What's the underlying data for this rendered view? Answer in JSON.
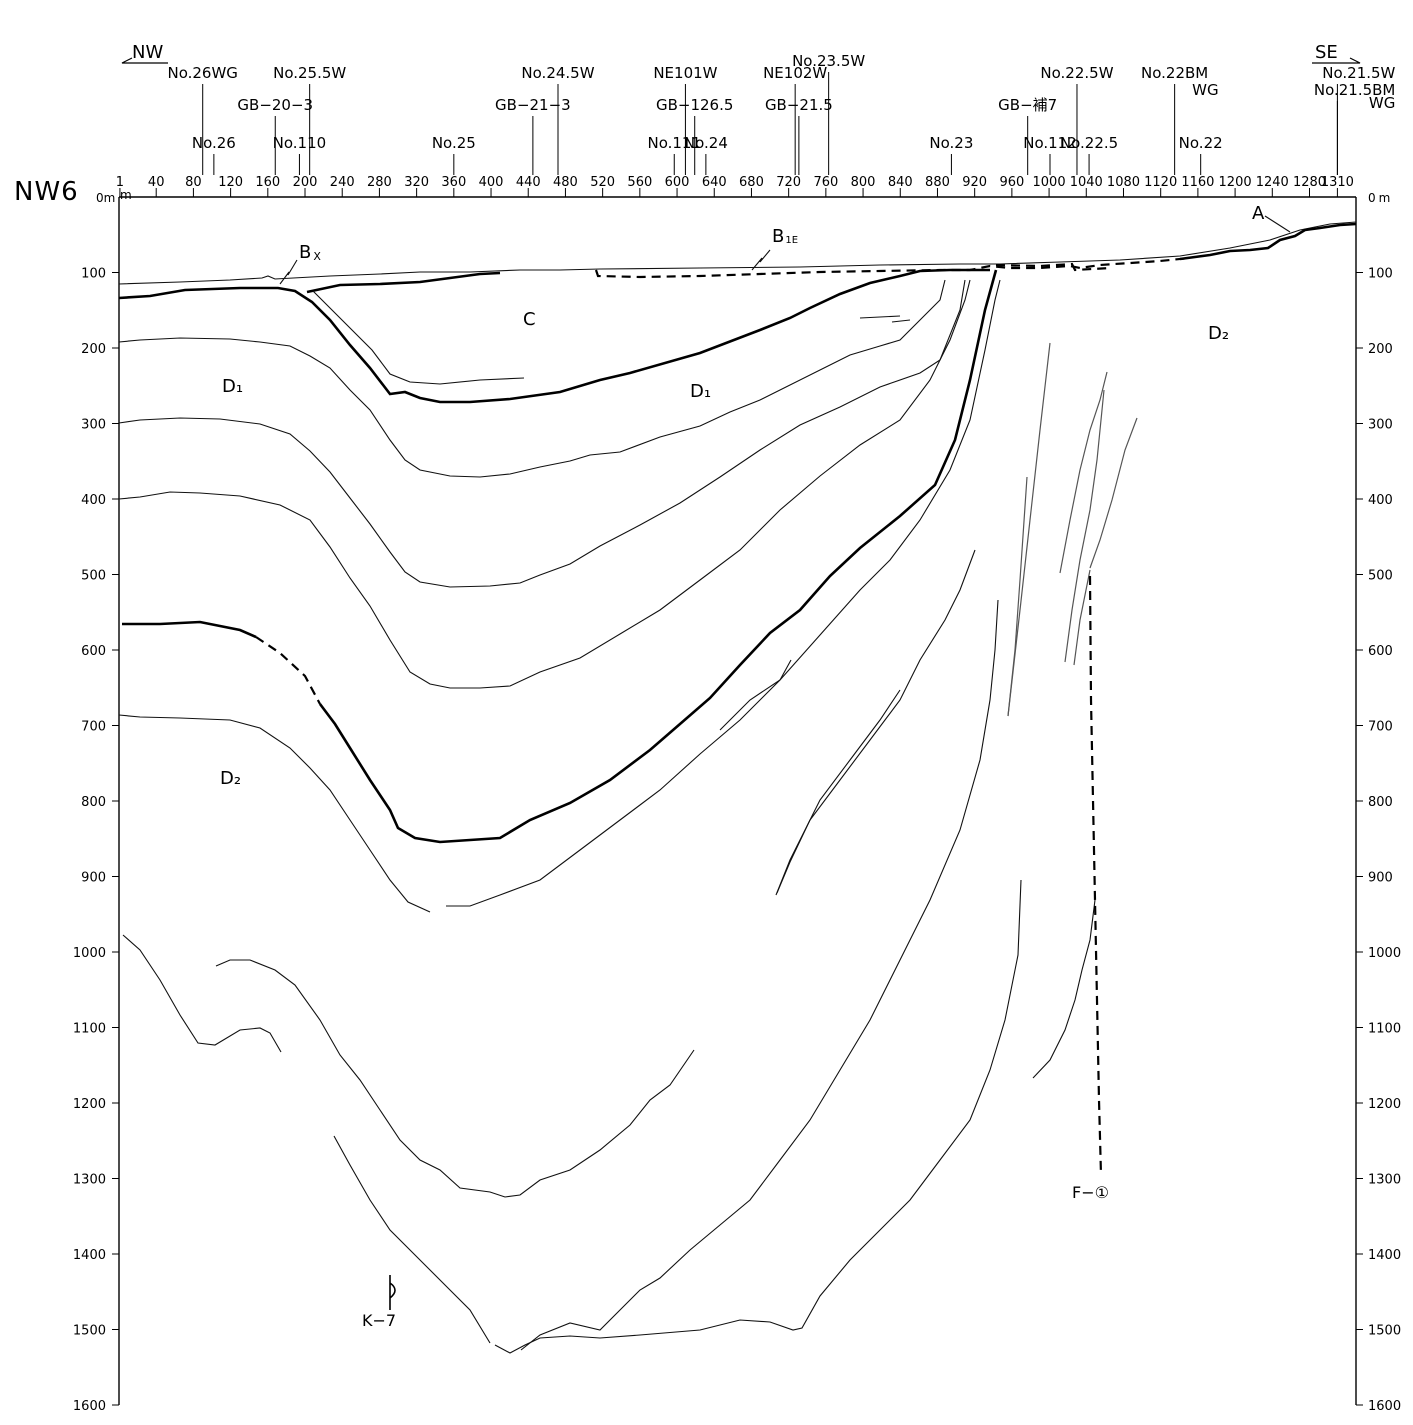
{
  "section": {
    "name": "NW6",
    "direction_left": "NW",
    "direction_right": "SE",
    "unit": "m"
  },
  "distance_axis": {
    "ticks": [
      "1",
      "40",
      "80",
      "120",
      "160",
      "200",
      "240",
      "280",
      "320",
      "360",
      "400",
      "440",
      "480",
      "520",
      "560",
      "600",
      "640",
      "680",
      "720",
      "760",
      "800",
      "840",
      "880",
      "920",
      "960",
      "1000",
      "1040",
      "1080",
      "1120",
      "1160",
      "1200",
      "1240",
      "1280",
      "1310"
    ]
  },
  "depth_axis": {
    "ticks": [
      "0",
      "100",
      "200",
      "300",
      "400",
      "500",
      "600",
      "700",
      "800",
      "900",
      "1000",
      "1100",
      "1200",
      "1300",
      "1400",
      "1500",
      "1600"
    ]
  },
  "boreholes": [
    {
      "label": "No.26WG",
      "x_m": 90
    },
    {
      "label": "No.26",
      "x_m": 102
    },
    {
      "label": "GB−20−3",
      "x_m": 168
    },
    {
      "label": "No.110",
      "x_m": 194
    },
    {
      "label": "No.25.5W",
      "x_m": 205
    },
    {
      "label": "No.25",
      "x_m": 360
    },
    {
      "label": "GB−21−3",
      "x_m": 445
    },
    {
      "label": "No.24.5W",
      "x_m": 472
    },
    {
      "label": "No.111",
      "x_m": 597
    },
    {
      "label": "NE101W",
      "x_m": 609
    },
    {
      "label": "GB−126.5",
      "x_m": 619
    },
    {
      "label": "No.24",
      "x_m": 631
    },
    {
      "label": "NE102W",
      "x_m": 727
    },
    {
      "label": "GB−21.5",
      "x_m": 731
    },
    {
      "label": "No.23.5W",
      "x_m": 763
    },
    {
      "label": "No.23",
      "x_m": 895
    },
    {
      "label": "GB−補7",
      "x_m": 977
    },
    {
      "label": "No.112",
      "x_m": 1001
    },
    {
      "label": "No.22.5W",
      "x_m": 1030
    },
    {
      "label": "No.22.5",
      "x_m": 1043
    },
    {
      "label": "No.22BM",
      "x_m": 1135
    },
    {
      "label": "WG",
      "x_m": 1135
    },
    {
      "label": "No.22",
      "x_m": 1163
    },
    {
      "label": "No.21.5W",
      "x_m": 1310
    },
    {
      "label": "No.21.5BM",
      "x_m": 1310
    },
    {
      "label": "WG",
      "x_m": 1310
    }
  ],
  "geology_labels": {
    "bx": "B",
    "bx_sub": "X",
    "b1e": "B",
    "b1e_sub": "1E",
    "a": "A",
    "c": "C",
    "d1_left": "D₁",
    "d1_mid": "D₁",
    "d2_right": "D₂",
    "d2_left": "D₂"
  },
  "fault_label": "F−①",
  "structure_label": "K−7",
  "colors": {
    "line": "#000000",
    "grey_line": "#555555",
    "background": "#ffffff"
  }
}
